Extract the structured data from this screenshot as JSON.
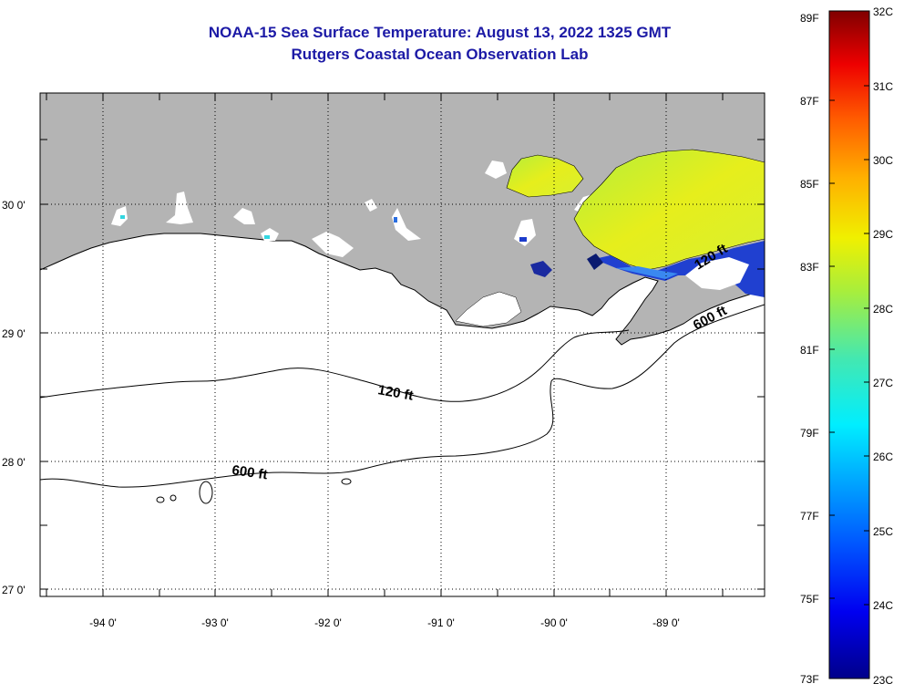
{
  "title": "NOAA-15 Sea Surface Temperature:  August 13, 2022 1325 GMT",
  "subtitle": "Rutgers Coastal Ocean Observation Lab",
  "lat_ticks": [
    "30 0'",
    "29 0'",
    "28 0'",
    "27 0'"
  ],
  "lon_ticks": [
    "-94 0'",
    "-93 0'",
    "-92 0'",
    "-91 0'",
    "-90 0'",
    "-89 0'"
  ],
  "contour_labels": [
    "120 ft",
    "600 ft",
    "120 ft",
    "600 ft"
  ],
  "colorbar": {
    "fahrenheit": [
      "89F",
      "87F",
      "85F",
      "83F",
      "81F",
      "79F",
      "77F",
      "75F",
      "73F"
    ],
    "celsius": [
      "32C",
      "31C",
      "30C",
      "29C",
      "28C",
      "27C",
      "26C",
      "25C",
      "24C",
      "23C"
    ]
  },
  "colors": {
    "title": "#1c1aa6",
    "land": "#b4b4b4",
    "ocean": "#ffffff"
  }
}
